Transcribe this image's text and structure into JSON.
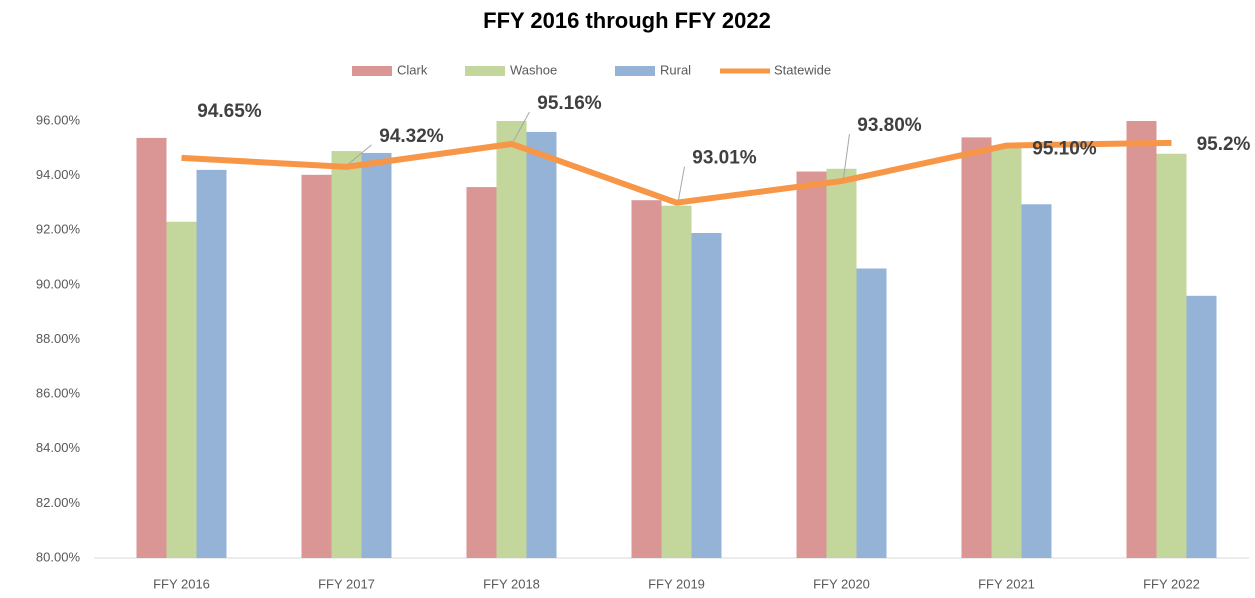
{
  "chart_data": {
    "type": "bar_line",
    "title": "FFY 2016 through FFY 2022",
    "categories": [
      "FFY 2016",
      "FFY 2017",
      "FFY 2018",
      "FFY 2019",
      "FFY 2020",
      "FFY 2021",
      "FFY 2022"
    ],
    "series": [
      {
        "name": "Clark",
        "color": "#d99694",
        "type": "bar",
        "values": [
          95.38,
          94.03,
          93.58,
          93.1,
          94.15,
          95.4,
          96.0
        ]
      },
      {
        "name": "Washoe",
        "color": "#c3d69b",
        "type": "bar",
        "values": [
          92.31,
          94.9,
          96.0,
          92.9,
          94.25,
          95.1,
          94.8
        ]
      },
      {
        "name": "Rural",
        "color": "#95b3d7",
        "type": "bar",
        "values": [
          94.21,
          94.83,
          95.6,
          91.9,
          90.6,
          92.95,
          89.6
        ]
      },
      {
        "name": "Statewide",
        "color": "#f79646",
        "type": "line",
        "values": [
          94.65,
          94.32,
          95.16,
          93.01,
          93.8,
          95.1,
          95.2
        ],
        "value_labels": [
          "94.65%",
          "94.32%",
          "95.16%",
          "93.01%",
          "93.80%",
          "95.10%",
          "95.2%"
        ]
      }
    ],
    "ylim": [
      80,
      96
    ],
    "yticks": [
      {
        "value": 80,
        "label": "80.00%"
      },
      {
        "value": 82,
        "label": "82.00%"
      },
      {
        "value": 84,
        "label": "84.00%"
      },
      {
        "value": 86,
        "label": "86.00%"
      },
      {
        "value": 88,
        "label": "88.00%"
      },
      {
        "value": 90,
        "label": "90.00%"
      },
      {
        "value": 92,
        "label": "92.00%"
      },
      {
        "value": 94,
        "label": "94.00%"
      },
      {
        "value": 96,
        "label": "96.00%"
      }
    ],
    "legend": "top"
  }
}
